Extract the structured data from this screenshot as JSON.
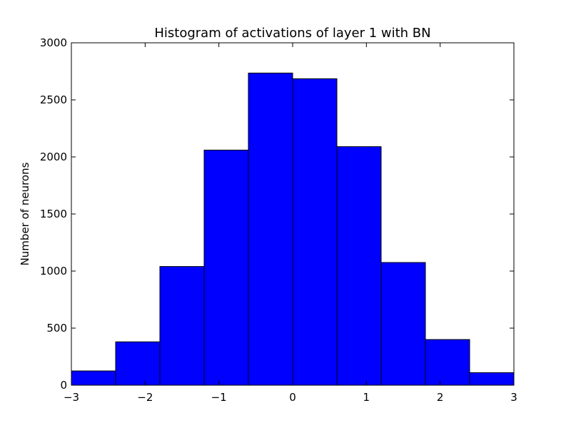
{
  "chart_data": {
    "type": "bar",
    "title": "Histogram of activations of layer 1  with BN",
    "xlabel": "",
    "ylabel": "Number of neurons",
    "bin_edges": [
      -3,
      -2.4,
      -1.8,
      -1.2,
      -0.6,
      0,
      0.6,
      1.2,
      1.8,
      2.4,
      3
    ],
    "values": [
      125,
      380,
      1040,
      2060,
      2735,
      2685,
      2090,
      1075,
      400,
      110
    ],
    "xlim": [
      -3,
      3
    ],
    "ylim": [
      0,
      3000
    ],
    "xticks": [
      -3,
      -2,
      -1,
      0,
      1,
      2,
      3
    ],
    "xtick_labels": [
      "−3",
      "−2",
      "−1",
      "0",
      "1",
      "2",
      "3"
    ],
    "yticks": [
      0,
      500,
      1000,
      1500,
      2000,
      2500,
      3000
    ],
    "ytick_labels": [
      "0",
      "500",
      "1000",
      "1500",
      "2000",
      "2500",
      "3000"
    ],
    "bar_color": "#0000ff",
    "edge_color": "#000000",
    "grid": false
  }
}
